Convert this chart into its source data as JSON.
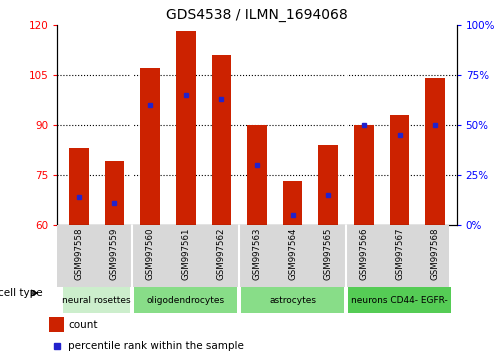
{
  "title": "GDS4538 / ILMN_1694068",
  "samples": [
    "GSM997558",
    "GSM997559",
    "GSM997560",
    "GSM997561",
    "GSM997562",
    "GSM997563",
    "GSM997564",
    "GSM997565",
    "GSM997566",
    "GSM997567",
    "GSM997568"
  ],
  "count_values": [
    83,
    79,
    107,
    118,
    111,
    90,
    73,
    84,
    90,
    93,
    104
  ],
  "percentile_values": [
    14,
    11,
    60,
    65,
    63,
    30,
    5,
    15,
    50,
    45,
    50
  ],
  "ylim_left": [
    60,
    120
  ],
  "ylim_right": [
    0,
    100
  ],
  "yticks_left": [
    60,
    75,
    90,
    105,
    120
  ],
  "yticks_right": [
    0,
    25,
    50,
    75,
    100
  ],
  "bar_color": "#cc2200",
  "marker_color": "#2222cc",
  "cell_types": [
    {
      "label": "neural rosettes",
      "start": 0,
      "end": 1,
      "color": "#cceecc"
    },
    {
      "label": "oligodendrocytes",
      "start": 2,
      "end": 4,
      "color": "#88dd88"
    },
    {
      "label": "astrocytes",
      "start": 5,
      "end": 7,
      "color": "#88dd88"
    },
    {
      "label": "neurons CD44- EGFR-",
      "start": 8,
      "end": 10,
      "color": "#44cc44"
    }
  ],
  "legend_count_label": "count",
  "legend_pct_label": "percentile rank within the sample",
  "cell_type_label": "cell type",
  "bar_width": 0.55
}
